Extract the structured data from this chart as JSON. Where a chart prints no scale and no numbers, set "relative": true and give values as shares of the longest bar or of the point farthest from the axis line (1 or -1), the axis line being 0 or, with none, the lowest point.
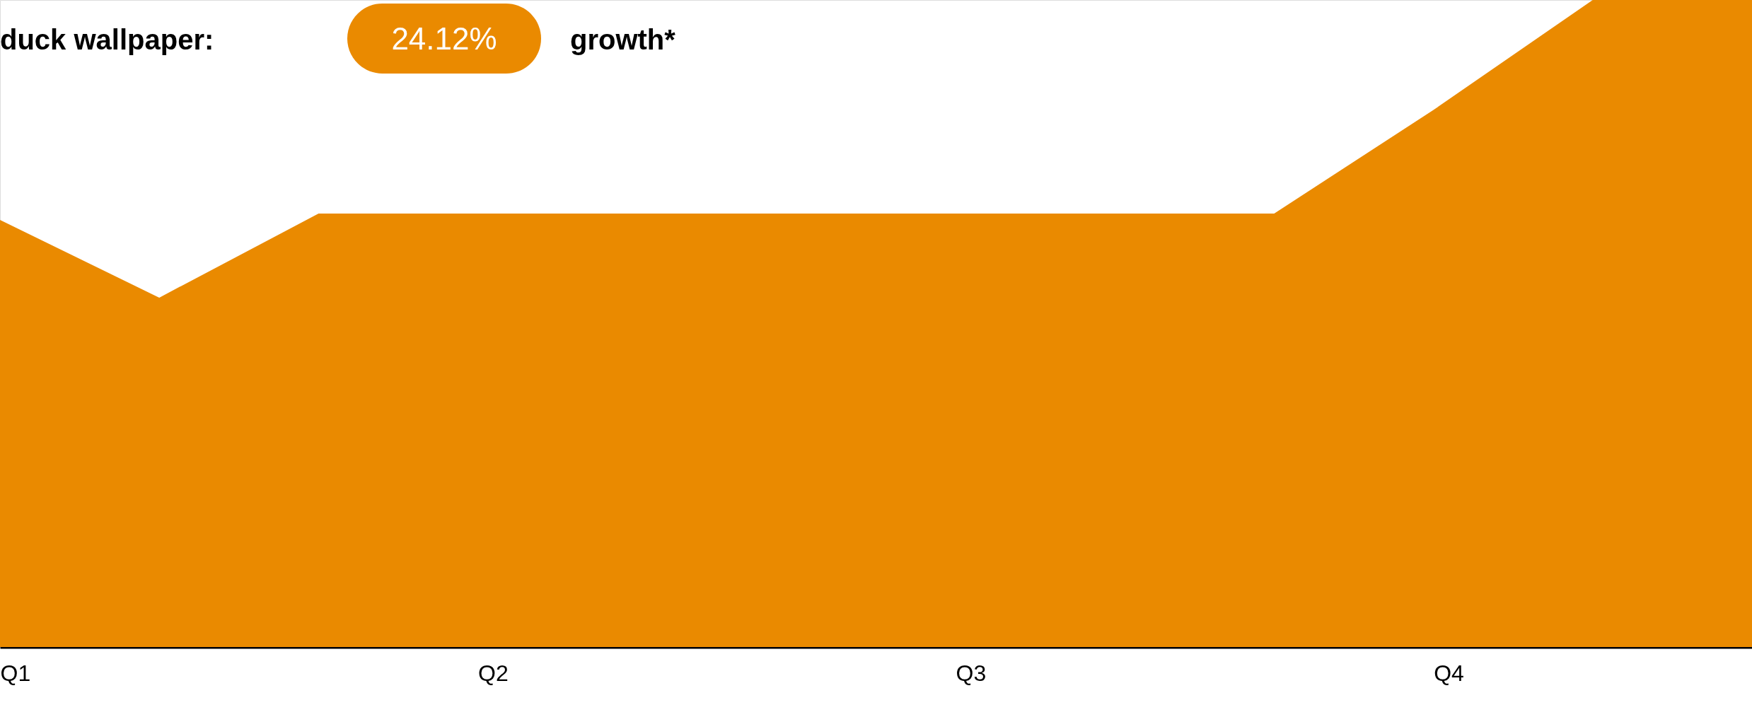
{
  "chart_data": {
    "type": "area",
    "title": "duck wallpaper:",
    "annotations": [
      "24.12%",
      "growth*"
    ],
    "categories": [
      "Q1",
      null,
      null,
      "Q2",
      null,
      null,
      "Q3",
      null,
      null,
      "Q4",
      null,
      null
    ],
    "relative": true,
    "series": [
      {
        "color": "#ea8a00",
        "values": [
          0.66,
          0.54,
          0.67,
          0.67,
          0.67,
          0.67,
          0.67,
          0.67,
          0.67,
          0.83,
          1.0,
          1.0
        ]
      }
    ]
  }
}
